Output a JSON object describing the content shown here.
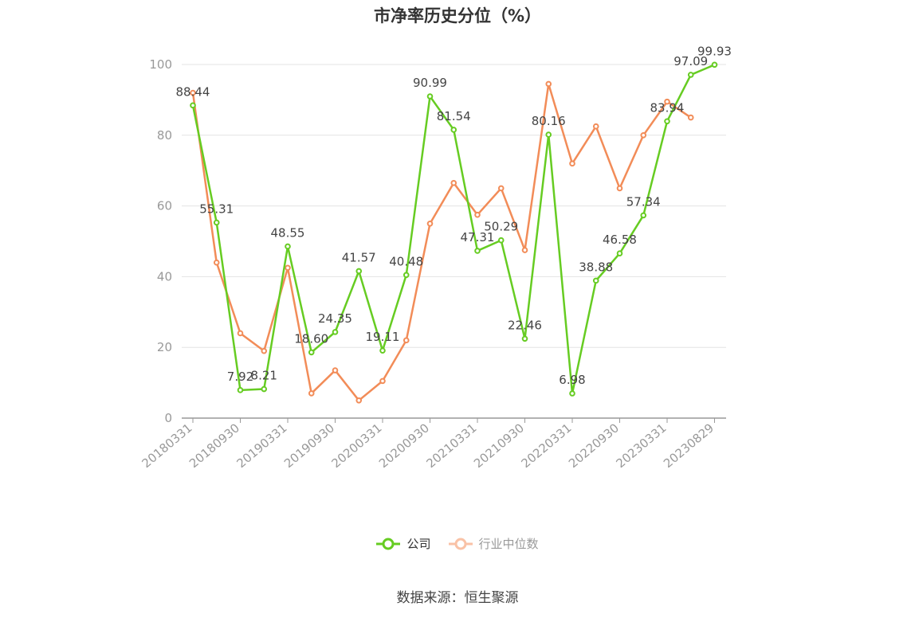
{
  "title": "市净率历史分位（%）",
  "source": "数据来源：恒生聚源",
  "colors": {
    "company": "#66cc22",
    "industry": "#f28c58",
    "grid": "#e3e3e3",
    "axis": "#999999",
    "legend_inactive": "#999999"
  },
  "chart_data": {
    "type": "line",
    "title": "市净率历史分位（%）",
    "xlabel": "",
    "ylabel": "",
    "ylim": [
      0,
      100
    ],
    "yticks": [
      0,
      20,
      40,
      60,
      80,
      100
    ],
    "grid": true,
    "legend_position": "bottom",
    "x_tick_labels": [
      "20180331",
      "20180930",
      "20190331",
      "20190930",
      "20200331",
      "20200930",
      "20210331",
      "20210930",
      "20220331",
      "20220930",
      "20230331",
      "20230829"
    ],
    "x": [
      "20180331",
      "20180630",
      "20180930",
      "20181231",
      "20190331",
      "20190630",
      "20190930",
      "20191231",
      "20200331",
      "20200630",
      "20200930",
      "20201231",
      "20210331",
      "20210630",
      "20210930",
      "20211231",
      "20220331",
      "20220630",
      "20220930",
      "20221231",
      "20230331",
      "20230630",
      "20230829"
    ],
    "series": [
      {
        "name": "公司",
        "values": [
          88.44,
          55.31,
          7.92,
          8.21,
          48.55,
          18.6,
          24.35,
          41.57,
          19.11,
          40.48,
          90.99,
          81.54,
          47.31,
          50.29,
          22.46,
          80.16,
          6.98,
          38.88,
          46.58,
          57.34,
          83.94,
          97.09,
          99.93
        ],
        "labels": [
          "88.44",
          "55.31",
          "7.92",
          "8.21",
          "48.55",
          "18.60",
          "24.35",
          "41.57",
          "19.11",
          "40.48",
          "90.99",
          "81.54",
          "47.31",
          "50.29",
          "22.46",
          "80.16",
          "6.98",
          "38.88",
          "46.58",
          "57.34",
          "83.94",
          "97.09",
          "99.93"
        ]
      },
      {
        "name": "行业中位数",
        "values": [
          92,
          44,
          24,
          19,
          42.5,
          7,
          13.5,
          5,
          10.5,
          22,
          55,
          66.5,
          57.5,
          65,
          47.5,
          94.5,
          72,
          82.5,
          65,
          80,
          89.5,
          85,
          null
        ]
      }
    ]
  }
}
